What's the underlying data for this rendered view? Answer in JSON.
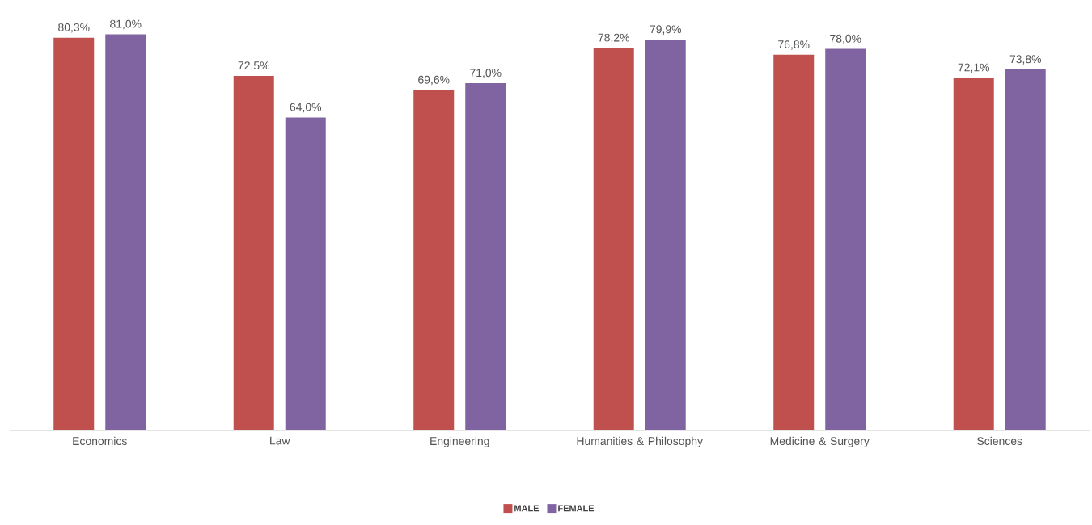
{
  "chart_data": {
    "type": "bar",
    "categories": [
      "Economics",
      "Law",
      "Engineering",
      "Humanities & Philosophy",
      "Medicine & Surgery",
      "Sciences"
    ],
    "series": [
      {
        "name": "MALE",
        "color": "#c0504d",
        "values": [
          80.3,
          72.5,
          69.6,
          78.2,
          76.8,
          72.1
        ],
        "value_labels": [
          "80,3%",
          "72,5%",
          "69,6%",
          "78,2%",
          "76,8%",
          "72,1%"
        ]
      },
      {
        "name": "FEMALE",
        "color": "#8064a2",
        "values": [
          81.0,
          64.0,
          71.0,
          79.9,
          78.0,
          73.8
        ],
        "value_labels": [
          "81,0%",
          "64,0%",
          "71,0%",
          "79,9%",
          "78,0%",
          "73,8%"
        ]
      }
    ],
    "legend": "bottom"
  }
}
